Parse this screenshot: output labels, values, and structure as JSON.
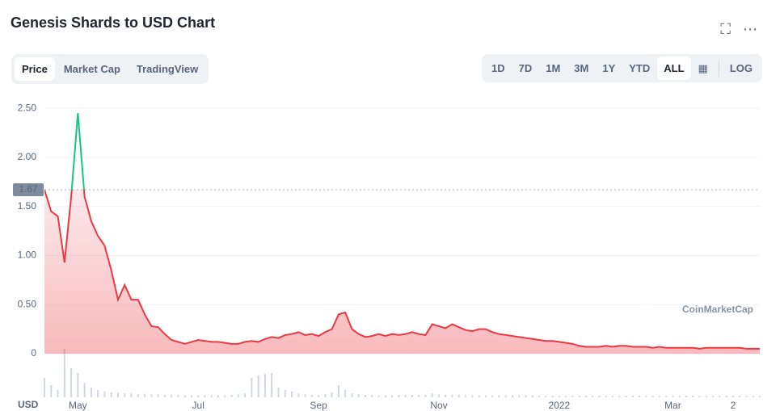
{
  "ui": {
    "title": "Genesis Shards to USD Chart",
    "tabs": [
      "Price",
      "Market Cap",
      "TradingView"
    ],
    "ranges": [
      "1D",
      "7D",
      "1M",
      "3M",
      "1Y",
      "YTD",
      "ALL"
    ],
    "log_button": "LOG",
    "watermark": "CoinMarketCap"
  },
  "chart_data": {
    "type": "line",
    "y_axis_label": "USD",
    "categories": [
      null,
      null,
      null,
      null,
      null,
      "May",
      null,
      null,
      null,
      null,
      null,
      null,
      null,
      null,
      null,
      null,
      null,
      null,
      null,
      null,
      null,
      null,
      null,
      "Jul",
      null,
      null,
      null,
      null,
      null,
      null,
      null,
      null,
      null,
      null,
      null,
      null,
      null,
      null,
      null,
      null,
      null,
      "Sep",
      null,
      null,
      null,
      null,
      null,
      null,
      null,
      null,
      null,
      null,
      null,
      null,
      null,
      null,
      null,
      null,
      null,
      "Nov",
      null,
      null,
      null,
      null,
      null,
      null,
      null,
      null,
      null,
      null,
      null,
      null,
      null,
      null,
      null,
      null,
      null,
      "2022",
      null,
      null,
      null,
      null,
      null,
      null,
      null,
      null,
      null,
      null,
      null,
      null,
      null,
      null,
      null,
      null,
      "Mar",
      null,
      null,
      null,
      null,
      null,
      null,
      null,
      null,
      "2",
      null,
      null,
      null,
      null
    ],
    "series": [
      {
        "name": "Price",
        "color": "#ea3943",
        "above_color": "#16c784",
        "values": [
          1.67,
          1.45,
          1.4,
          0.93,
          1.6,
          2.45,
          1.6,
          1.35,
          1.2,
          1.1,
          0.85,
          0.55,
          0.7,
          0.55,
          0.55,
          0.4,
          0.28,
          0.27,
          0.2,
          0.14,
          0.12,
          0.1,
          0.12,
          0.14,
          0.13,
          0.12,
          0.12,
          0.11,
          0.1,
          0.1,
          0.12,
          0.13,
          0.12,
          0.15,
          0.17,
          0.16,
          0.19,
          0.2,
          0.22,
          0.19,
          0.2,
          0.18,
          0.22,
          0.25,
          0.4,
          0.42,
          0.25,
          0.2,
          0.17,
          0.18,
          0.2,
          0.18,
          0.2,
          0.19,
          0.2,
          0.22,
          0.2,
          0.19,
          0.3,
          0.28,
          0.26,
          0.3,
          0.27,
          0.24,
          0.23,
          0.25,
          0.25,
          0.22,
          0.2,
          0.19,
          0.18,
          0.17,
          0.16,
          0.15,
          0.14,
          0.13,
          0.13,
          0.12,
          0.11,
          0.1,
          0.08,
          0.07,
          0.07,
          0.07,
          0.08,
          0.07,
          0.08,
          0.08,
          0.07,
          0.07,
          0.07,
          0.06,
          0.07,
          0.06,
          0.06,
          0.06,
          0.06,
          0.06,
          0.05,
          0.06,
          0.06,
          0.06,
          0.06,
          0.06,
          0.06,
          0.05,
          0.05,
          0.05
        ]
      },
      {
        "name": "Volume",
        "color": "#cfd6e4",
        "values": [
          40,
          25,
          15,
          100,
          60,
          50,
          30,
          20,
          15,
          12,
          10,
          9,
          8,
          8,
          7,
          7,
          6,
          6,
          5,
          5,
          5,
          4,
          4,
          4,
          4,
          4,
          4,
          4,
          5,
          6,
          8,
          40,
          45,
          48,
          50,
          20,
          15,
          12,
          8,
          6,
          5,
          5,
          6,
          10,
          25,
          15,
          8,
          6,
          5,
          5,
          4,
          4,
          4,
          5,
          5,
          5,
          5,
          5,
          8,
          6,
          5,
          5,
          5,
          4,
          4,
          4,
          4,
          4,
          4,
          4,
          4,
          4,
          4,
          4,
          3,
          3,
          3,
          3,
          3,
          3,
          3,
          3,
          3,
          3,
          3,
          3,
          3,
          3,
          3,
          3,
          3,
          3,
          3,
          3,
          3,
          3,
          3,
          3,
          3,
          3,
          3,
          3,
          3,
          3,
          3,
          3,
          3,
          3
        ]
      }
    ],
    "reference": 1.67,
    "ylim": [
      0,
      2.6
    ],
    "yticks": [
      0,
      {
        "value": 0.5,
        "label": "0.50"
      },
      {
        "value": 1,
        "label": "1.00"
      },
      {
        "value": 1.5,
        "label": "1.50"
      },
      {
        "value": 2,
        "label": "2.00"
      },
      {
        "value": 2.5,
        "label": "2.50"
      }
    ],
    "grid": true
  }
}
